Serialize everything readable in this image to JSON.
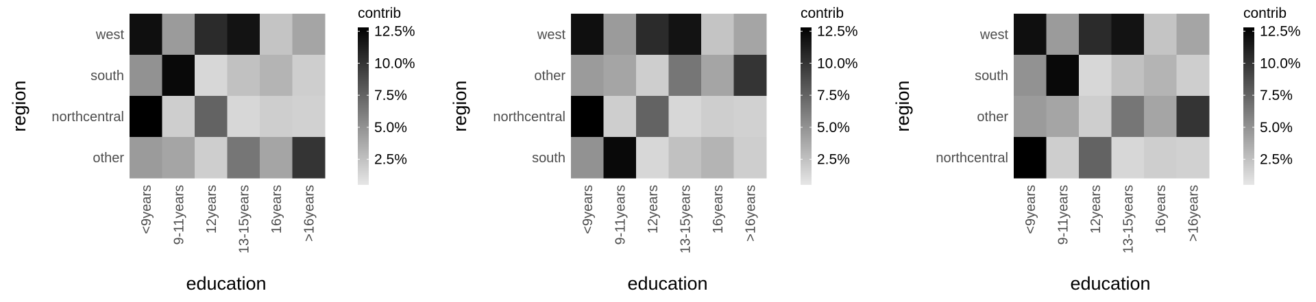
{
  "legend": {
    "title": "contrib",
    "range": [
      0.5,
      12.8
    ],
    "ticks": [
      2.5,
      5.0,
      7.5,
      10.0,
      12.5
    ],
    "tick_labels": [
      "2.5%",
      "5.0%",
      "7.5%",
      "10.0%",
      "12.5%"
    ]
  },
  "chart_data": [
    {
      "type": "heatmap",
      "xlabel": "education",
      "ylabel": "region",
      "x": [
        "<9years",
        "9-11years",
        "12years",
        "13-15years",
        "16years",
        ">16years"
      ],
      "y": [
        "west",
        "south",
        "northcentral",
        "other"
      ],
      "values": [
        [
          12.0,
          4.5,
          10.5,
          11.8,
          2.3,
          4.0
        ],
        [
          5.0,
          12.3,
          1.3,
          2.5,
          3.2,
          1.8
        ],
        [
          12.8,
          1.8,
          7.5,
          1.3,
          1.8,
          1.6
        ],
        [
          4.5,
          4.0,
          1.8,
          6.5,
          4.0,
          10.0
        ]
      ],
      "color_range": [
        0.5,
        12.8
      ]
    },
    {
      "type": "heatmap",
      "xlabel": "education",
      "ylabel": "region",
      "x": [
        "<9years",
        "9-11years",
        "12years",
        "13-15years",
        "16years",
        ">16years"
      ],
      "y": [
        "west",
        "other",
        "northcentral",
        "south"
      ],
      "values": [
        [
          12.0,
          4.5,
          10.5,
          11.8,
          2.3,
          4.0
        ],
        [
          4.5,
          4.0,
          1.8,
          6.5,
          4.0,
          10.0
        ],
        [
          12.8,
          1.8,
          7.5,
          1.3,
          1.8,
          1.6
        ],
        [
          5.0,
          12.3,
          1.3,
          2.5,
          3.2,
          1.8
        ]
      ],
      "color_range": [
        0.5,
        12.8
      ]
    },
    {
      "type": "heatmap",
      "xlabel": "education",
      "ylabel": "region",
      "x": [
        "<9years",
        "9-11years",
        "12years",
        "13-15years",
        "16years",
        ">16years"
      ],
      "y": [
        "west",
        "south",
        "other",
        "northcentral"
      ],
      "values": [
        [
          12.0,
          4.5,
          10.5,
          11.8,
          2.3,
          4.0
        ],
        [
          5.0,
          12.3,
          1.3,
          2.5,
          3.2,
          1.8
        ],
        [
          4.5,
          4.0,
          1.8,
          6.5,
          4.0,
          10.0
        ],
        [
          12.8,
          1.8,
          7.5,
          1.3,
          1.8,
          1.6
        ]
      ],
      "color_range": [
        0.5,
        12.8
      ]
    }
  ]
}
